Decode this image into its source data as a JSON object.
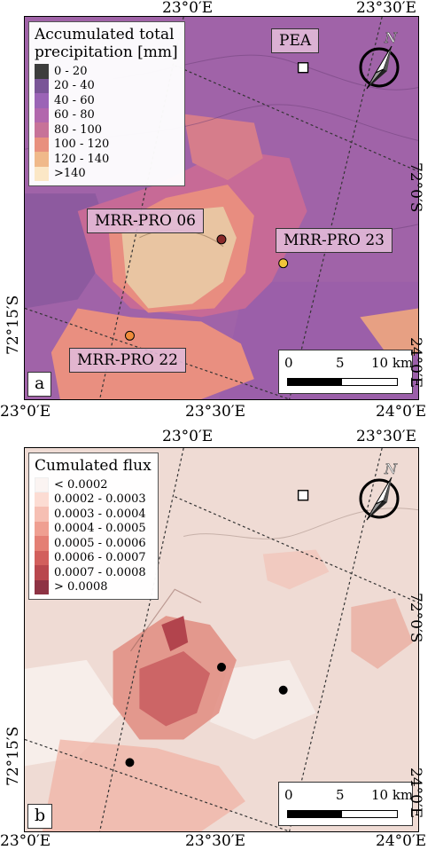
{
  "panels": [
    {
      "letter": "a",
      "top_ticks": [
        "23°0′E",
        "23°30′E"
      ],
      "bottom_ticks": [
        "23°0′E",
        "23°30′E",
        "24°0′E"
      ],
      "right_ticks": [
        "72°0′S",
        "24°0′E"
      ],
      "left_ticks": [
        "72°15′S"
      ],
      "legend": {
        "title": [
          "Accumulated total",
          "precipitation [mm]"
        ],
        "entries": [
          {
            "label": "0 - 20",
            "color": "#3d3d3d"
          },
          {
            "label": "20 - 40",
            "color": "#7a5597"
          },
          {
            "label": "40 - 60",
            "color": "#9b64b6"
          },
          {
            "label": "60 - 80",
            "color": "#b267ad"
          },
          {
            "label": "80 - 100",
            "color": "#c77298"
          },
          {
            "label": "100 - 120",
            "color": "#e8907e"
          },
          {
            "label": "120 - 140",
            "color": "#f0b98a"
          },
          {
            "label": ">140",
            "color": "#fbe7c6"
          }
        ]
      },
      "labels": {
        "pea": "PEA",
        "mrr06": "MRR-PRO 06",
        "mrr23": "MRR-PRO 23",
        "mrr22": "MRR-PRO 22"
      },
      "station_colors": {
        "mrr06": "#8a2a2a",
        "mrr23": "#f2c53a",
        "mrr22": "#f08c3a"
      },
      "scale": {
        "labels": [
          "0",
          "5",
          "10 km"
        ]
      }
    },
    {
      "letter": "b",
      "top_ticks": [
        "23°0′E",
        "23°30′E"
      ],
      "bottom_ticks": [
        "23°0′E",
        "23°30′E",
        "24°0′E"
      ],
      "right_ticks": [
        "72°0′S",
        "24°0′E"
      ],
      "left_ticks": [
        "72°15′S"
      ],
      "legend": {
        "title": [
          "Cumulated flux"
        ],
        "entries": [
          {
            "label": "< 0.0002",
            "color": "#fbf4f2"
          },
          {
            "label": "0.0002 - 0.0003",
            "color": "#fcdcd3"
          },
          {
            "label": "0.0003 - 0.0004",
            "color": "#f6bfb3"
          },
          {
            "label": "0.0004 - 0.0005",
            "color": "#ef9f91"
          },
          {
            "label": "0.0005 - 0.0006",
            "color": "#e47f74"
          },
          {
            "label": "0.0006 - 0.0007",
            "color": "#d25f5c"
          },
          {
            "label": "0.0007 - 0.0008",
            "color": "#b9474d"
          },
          {
            "label": "> 0.0008",
            "color": "#8e3344"
          }
        ]
      },
      "scale": {
        "labels": [
          "0",
          "5",
          "10 km"
        ]
      }
    }
  ],
  "north_label": "N"
}
